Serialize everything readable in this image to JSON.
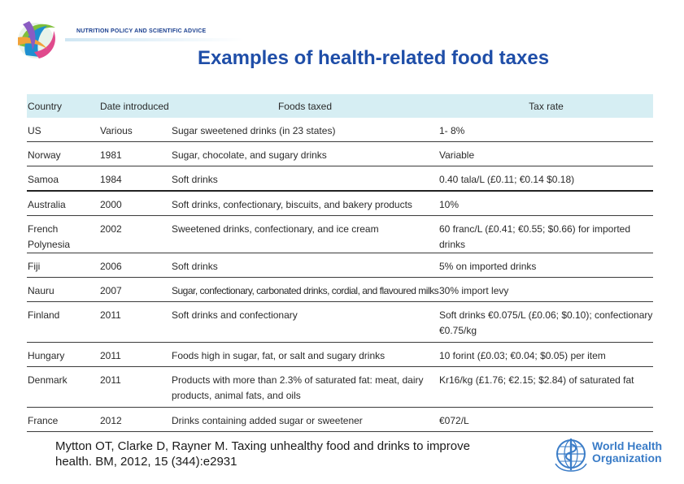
{
  "header": {
    "brand": "NUTRITION POLICY AND SCIENTIFIC ADVICE",
    "title": "Examples of health-related food taxes"
  },
  "table": {
    "columns": [
      "Country",
      "Date introduced",
      "Foods taxed",
      "Tax rate"
    ],
    "rows": [
      {
        "country": "US",
        "date": "Various",
        "foods": "Sugar sweetened drinks (in 23 states)",
        "rate": "1- 8%"
      },
      {
        "country": "Norway",
        "date": "1981",
        "foods": "Sugar, chocolate, and sugary drinks",
        "rate": "Variable"
      },
      {
        "country": "Samoa",
        "date": "1984",
        "foods": "Soft drinks",
        "rate": "0.40 tala/L (£0.11; €0.14 $0.18)"
      },
      {
        "country": "Australia",
        "date": "2000",
        "foods": "Soft drinks, confectionary, biscuits, and bakery products",
        "rate": "10%"
      },
      {
        "country": "French Polynesia",
        "date": "2002",
        "foods": "Sweetened drinks, confectionary, and ice cream",
        "rate": "60 franc/L (£0.41; €0.55; $0.66) for imported drinks"
      },
      {
        "country": "Fiji",
        "date": "2006",
        "foods": "Soft drinks",
        "rate": "5% on imported drinks"
      },
      {
        "country": "Nauru",
        "date": "2007",
        "foods": "Sugar, confectionary, carbonated drinks, cordial, and flavoured milks",
        "rate": "30% import levy"
      },
      {
        "country": "Finland",
        "date": "2011",
        "foods": "Soft drinks and confectionary",
        "rate": "Soft drinks €0.075/L (£0.06; $0.10); confectionary €0.75/kg"
      },
      {
        "country": "Hungary",
        "date": "2011",
        "foods": "Foods high in sugar, fat, or salt and sugary drinks",
        "rate": "10 forint (£0.03; €0.04; $0.05) per item"
      },
      {
        "country": "Denmark",
        "date": "2011",
        "foods": "Products with more than 2.3% of saturated fat: meat, dairy products, animal fats, and oils",
        "rate": "Kr16/kg (£1.76; €2.15; $2.84) of saturated fat"
      },
      {
        "country": "France",
        "date": "2012",
        "foods": "Drinks containing added sugar or sweetener",
        "rate": "€072/L"
      }
    ]
  },
  "citation": {
    "line1": "Mytton OT, Clarke D, Rayner M. Taxing unhealthy food and drinks to improve",
    "line2": "health. BM, 2012, 15 (344):e2931"
  },
  "footer": {
    "org_line1": "World Health",
    "org_line2": "Organization"
  },
  "colors": {
    "title": "#1f4ea8",
    "header_row": "#d6eef3",
    "who_blue": "#3a7cc7"
  }
}
